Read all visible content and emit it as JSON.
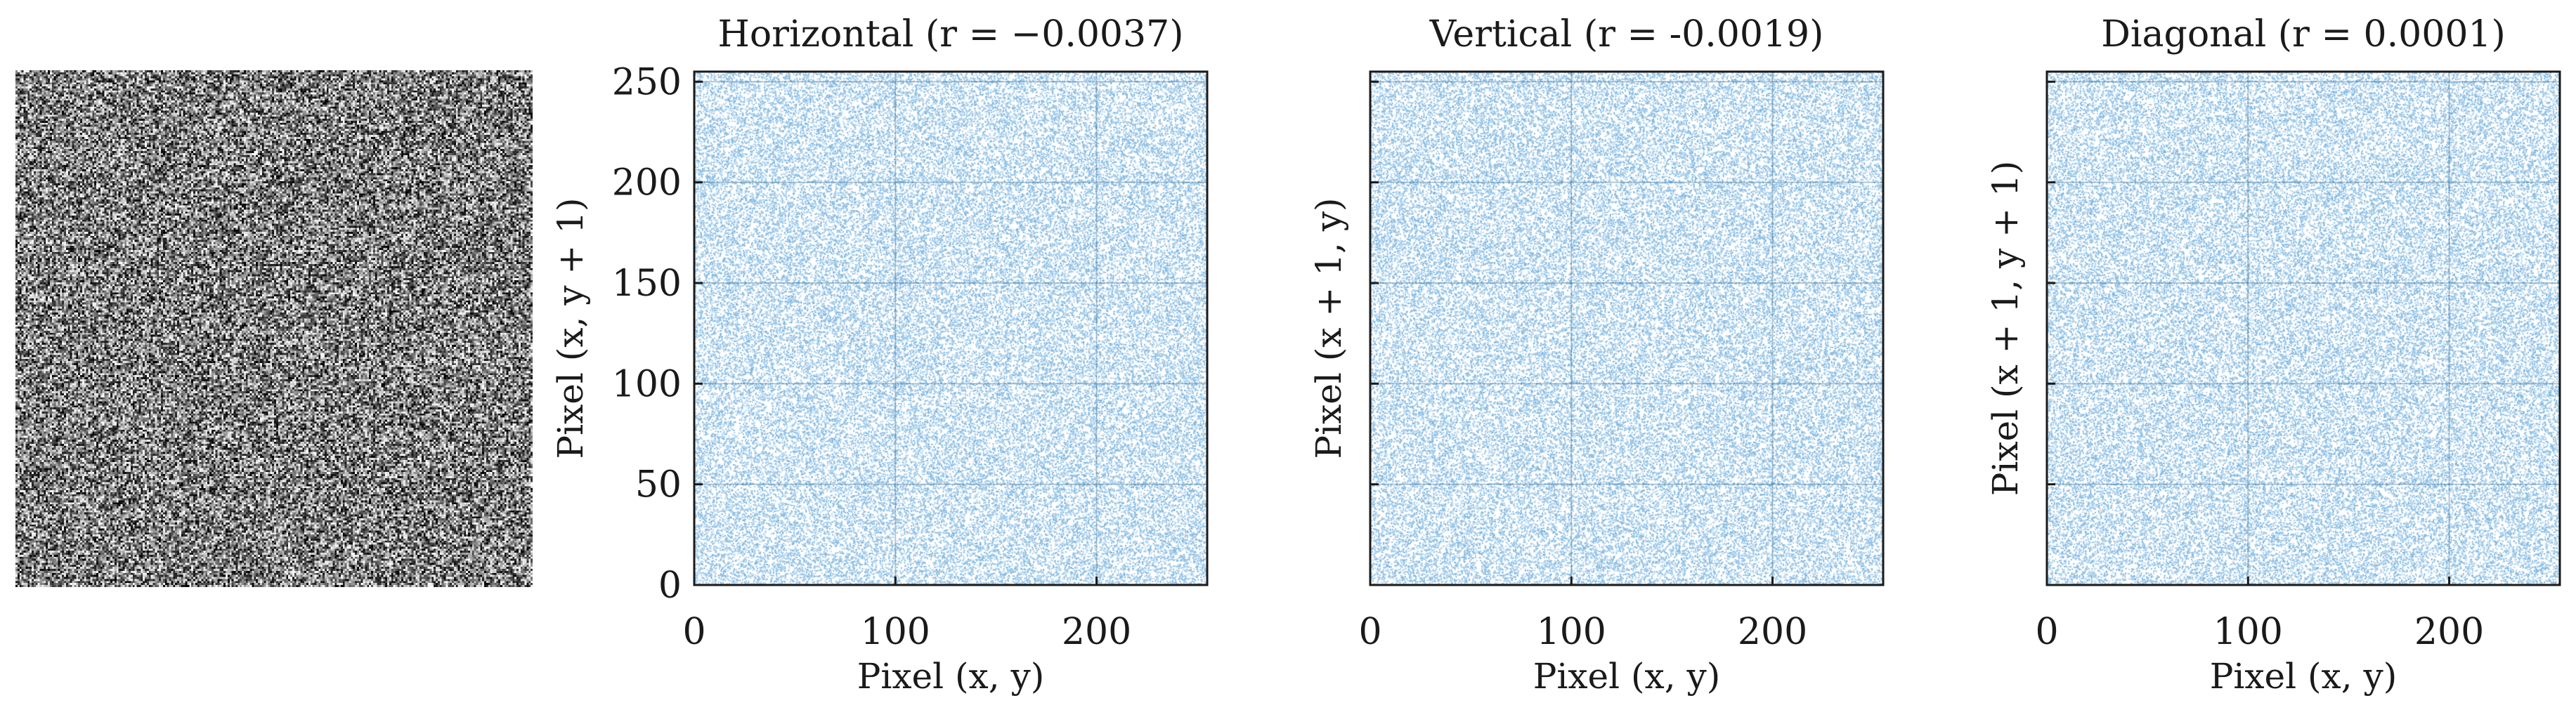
{
  "image": {
    "name": "encrypted-image",
    "kind": "random-noise"
  },
  "colors": {
    "scatter": "#7fb6df",
    "scatter_light": "#a9d0ee",
    "axis": "#1a1a1a",
    "grid": "#1f5f8a"
  },
  "chart_data": [
    {
      "type": "scatter",
      "title": "Horizontal (r = −0.0037)",
      "xlabel": "Pixel (x, y)",
      "ylabel": "Pixel (x, y + 1)",
      "xlim": [
        0,
        255
      ],
      "ylim": [
        0,
        255
      ],
      "xticks": [
        "0",
        "100",
        "200"
      ],
      "yticks": [
        "0",
        "50",
        "100",
        "150",
        "200",
        "250"
      ],
      "xtick_values": [
        0,
        100,
        200
      ],
      "ytick_values": [
        0,
        50,
        100,
        150,
        200,
        250
      ],
      "grid": true,
      "r": -0.0037,
      "distribution": "uniform"
    },
    {
      "type": "scatter",
      "title": "Vertical (r = -0.0019)",
      "xlabel": "Pixel (x, y)",
      "ylabel": "Pixel (x + 1, y)",
      "xlim": [
        0,
        255
      ],
      "ylim": [
        0,
        255
      ],
      "xticks": [
        "0",
        "100",
        "200"
      ],
      "yticks": [],
      "xtick_values": [
        0,
        100,
        200
      ],
      "ytick_values": [
        0,
        50,
        100,
        150,
        200,
        250
      ],
      "grid": true,
      "r": -0.0019,
      "distribution": "uniform"
    },
    {
      "type": "scatter",
      "title": "Diagonal (r = 0.0001)",
      "xlabel": "Pixel (x, y)",
      "ylabel": "Pixel (x + 1, y + 1)",
      "xlim": [
        0,
        255
      ],
      "ylim": [
        0,
        255
      ],
      "xticks": [
        "0",
        "100",
        "200"
      ],
      "yticks": [],
      "xtick_values": [
        0,
        100,
        200
      ],
      "ytick_values": [
        0,
        50,
        100,
        150,
        200,
        250
      ],
      "grid": true,
      "r": 0.0001,
      "distribution": "uniform"
    }
  ]
}
